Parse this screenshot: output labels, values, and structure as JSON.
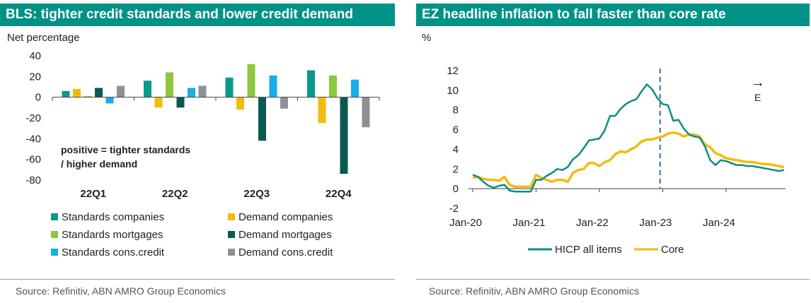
{
  "left": {
    "title": "BLS: tighter credit standards and lower credit demand",
    "source": "Source: Refinitiv, ABN AMRO Group Economics"
  },
  "right": {
    "title": "EZ headline inflation to fall faster than core rate",
    "source": "Source:  Refinitiv, ABN AMRO Group Economics"
  },
  "chart_data": [
    {
      "type": "bar",
      "title": "BLS: tighter credit standards and lower credit demand",
      "ylabel": "Net percentage",
      "ylim": [
        -80,
        40
      ],
      "yticks": [
        40,
        20,
        0,
        -20,
        -40,
        -60,
        -80
      ],
      "categories": [
        "22Q1",
        "22Q2",
        "22Q3",
        "22Q4"
      ],
      "annotation": [
        "positive = tighter standards",
        "/ higher demand"
      ],
      "legend_position": "bottom",
      "series": [
        {
          "name": "Standards companies",
          "color": "#0a9a8c",
          "values": [
            6,
            16,
            19,
            26
          ]
        },
        {
          "name": "Demand companies",
          "color": "#f2bc0f",
          "values": [
            8,
            -10,
            -12,
            -25
          ]
        },
        {
          "name": "Standards mortgages",
          "color": "#8dc63f",
          "values": [
            1,
            24,
            32,
            21
          ]
        },
        {
          "name": "Demand mortgages",
          "color": "#0b5a50",
          "values": [
            9,
            -10,
            -42,
            -74
          ]
        },
        {
          "name": "Standards cons.credit",
          "color": "#17aee5",
          "values": [
            -6,
            9,
            21,
            17
          ]
        },
        {
          "name": "Demand cons.credit",
          "color": "#8c9196",
          "values": [
            11,
            11,
            -11,
            -29
          ]
        }
      ]
    },
    {
      "type": "line",
      "title": "EZ headline inflation to fall faster than core rate",
      "ylabel": "%",
      "ylim": [
        -2,
        12
      ],
      "yticks": [
        12,
        10,
        8,
        6,
        4,
        2,
        0,
        -2
      ],
      "xlabels": [
        "Jan-20",
        "Jan-21",
        "Jan-22",
        "Jan-23",
        "Jan-24"
      ],
      "xlabel_months": [
        0,
        12,
        24,
        36,
        48
      ],
      "month_range": [
        0,
        59
      ],
      "forecast_start_month": 35.5,
      "forecast_label": "E",
      "forecast_arrow": "→",
      "legend_position": "bottom",
      "series": [
        {
          "name": "HICP all items",
          "color": "#0a8f82",
          "values": [
            1.4,
            1.2,
            0.7,
            0.3,
            0.1,
            0.3,
            0.4,
            -0.2,
            -0.3,
            -0.3,
            -0.3,
            -0.3,
            0.9,
            0.9,
            1.3,
            1.6,
            2.0,
            1.9,
            2.2,
            3.0,
            3.4,
            4.1,
            4.9,
            5.0,
            5.1,
            5.9,
            7.4,
            7.4,
            8.1,
            8.6,
            8.9,
            9.1,
            9.9,
            10.6,
            10.1,
            9.2,
            8.6,
            8.5,
            6.9,
            7.0,
            6.1,
            5.5,
            5.3,
            5.2,
            4.3,
            2.9,
            2.4,
            2.9,
            2.8,
            2.6,
            2.4,
            2.4,
            2.3,
            2.3,
            2.2,
            2.1,
            2.0,
            1.9,
            1.8,
            1.9
          ]
        },
        {
          "name": "Core",
          "color": "#f2bc0f",
          "values": [
            1.1,
            1.2,
            1.0,
            0.9,
            0.9,
            0.8,
            1.2,
            0.4,
            0.2,
            0.2,
            0.2,
            0.2,
            1.4,
            1.1,
            0.9,
            0.7,
            0.9,
            0.9,
            0.7,
            1.6,
            1.9,
            2.0,
            2.6,
            2.6,
            2.3,
            2.7,
            2.9,
            3.5,
            3.8,
            3.7,
            4.0,
            4.3,
            4.8,
            5.0,
            5.0,
            5.2,
            5.3,
            5.6,
            5.7,
            5.6,
            5.3,
            5.5,
            5.5,
            5.3,
            4.5,
            4.2,
            3.6,
            3.4,
            3.1,
            3.0,
            2.9,
            2.8,
            2.7,
            2.7,
            2.6,
            2.5,
            2.5,
            2.4,
            2.3,
            2.2
          ]
        }
      ]
    }
  ]
}
